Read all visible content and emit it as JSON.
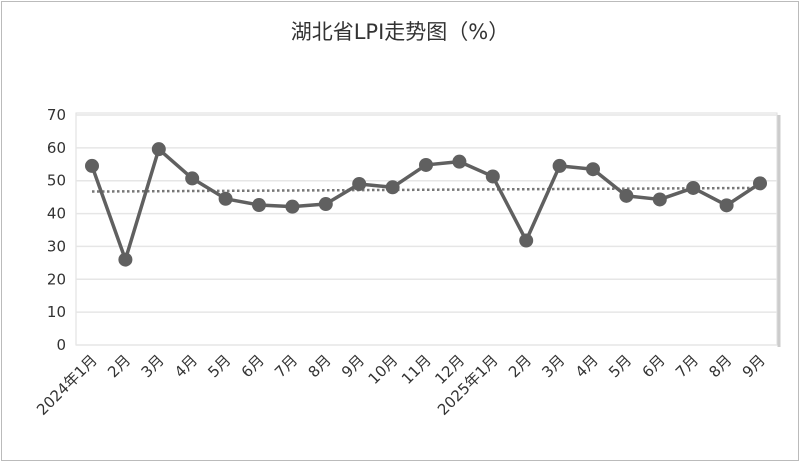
{
  "chart_data": {
    "type": "line",
    "title": "湖北省LPI走势图（%）",
    "xlabel": "",
    "ylabel": "",
    "ylim": [
      0,
      70
    ],
    "yticks": [
      0,
      10,
      20,
      30,
      40,
      50,
      60,
      70
    ],
    "grid": true,
    "categories": [
      "2024年1月",
      "2月",
      "3月",
      "4月",
      "5月",
      "6月",
      "7月",
      "8月",
      "9月",
      "10月",
      "11月",
      "12月",
      "2025年1月",
      "2月",
      "3月",
      "4月",
      "5月",
      "6月",
      "7月",
      "8月",
      "9月"
    ],
    "series": [
      {
        "values": [
          54.5,
          26,
          59.6,
          50.7,
          44.5,
          42.6,
          42.1,
          42.9,
          49,
          48,
          54.8,
          55.8,
          51.3,
          31.8,
          54.5,
          53.5,
          45.4,
          44.3,
          47.8,
          42.5,
          49.2
        ],
        "color": "#606060"
      }
    ],
    "trendline": {
      "style": "dotted",
      "start": 46.7,
      "end": 47.8,
      "color": "#777777"
    }
  }
}
